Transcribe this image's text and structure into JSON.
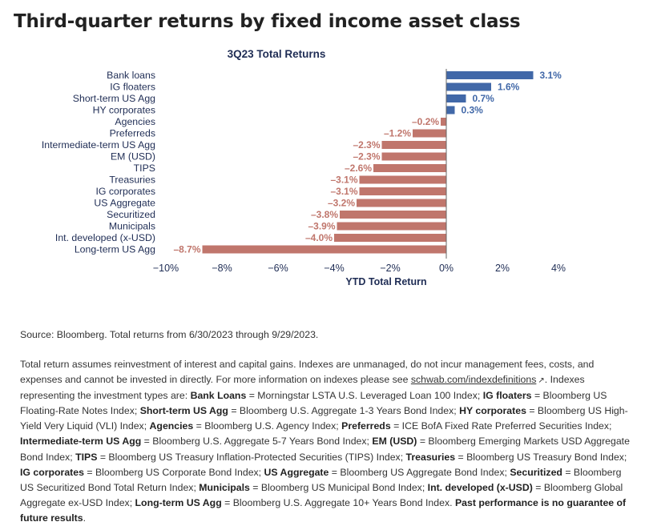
{
  "page_title": "Third-quarter returns by fixed income asset class",
  "chart_data": {
    "type": "bar",
    "orientation": "horizontal",
    "title": "3Q23 Total Returns",
    "xlabel": "YTD Total Return",
    "ylabel": "",
    "xlim": [
      -10,
      4
    ],
    "x_ticks": [
      -10,
      -8,
      -6,
      -4,
      -2,
      0,
      2,
      4
    ],
    "x_tick_labels": [
      "−10%",
      "−8%",
      "−6%",
      "−4%",
      "−2%",
      "0%",
      "2%",
      "4%"
    ],
    "categories": [
      "Bank loans",
      "IG floaters",
      "Short-term US Agg",
      "HY corporates",
      "Agencies",
      "Preferreds",
      "Intermediate-term US Agg",
      "EM (USD)",
      "TIPS",
      "Treasuries",
      "IG corporates",
      "US Aggregate",
      "Securitized",
      "Municipals",
      "Int. developed (x-USD)",
      "Long-term US Agg"
    ],
    "values": [
      3.1,
      1.6,
      0.7,
      0.3,
      -0.2,
      -1.2,
      -2.3,
      -2.3,
      -2.6,
      -3.1,
      -3.1,
      -3.2,
      -3.8,
      -3.9,
      -4.0,
      -8.7
    ],
    "data_labels": [
      "3.1%",
      "1.6%",
      "0.7%",
      "0.3%",
      "–0.2%",
      "–1.2%",
      "–2.3%",
      "–2.3%",
      "–2.6%",
      "–3.1%",
      "–3.1%",
      "–3.2%",
      "–3.8%",
      "–3.9%",
      "–4.0%",
      "–8.7%"
    ],
    "colors": {
      "positive": "#4168a8",
      "negative": "#c0766c",
      "axis_text": "#1f2d55",
      "zero_line": "#666666"
    },
    "grid": false
  },
  "footnotes": {
    "source": "Source: Bloomberg. Total returns from 6/30/2023 through 9/29/2023.",
    "t1": "Total return assumes reinvestment of interest and capital gains. Indexes are unmanaged, do not incur management fees, costs, and expenses and cannot be invested in directly. For more information on indexes please see ",
    "link": "schwab.com/indexdefinitions",
    "t2": ". Indexes representing the investment types are: ",
    "defs": [
      {
        "name": "Bank Loans",
        "desc": " = Morningstar LSTA U.S. Leveraged Loan 100 Index; "
      },
      {
        "name": "IG floaters",
        "desc": " = Bloomberg US Floating-Rate Notes Index; "
      },
      {
        "name": "Short-term US Agg",
        "desc": " = Bloomberg U.S. Aggregate 1-3 Years Bond Index; "
      },
      {
        "name": "HY corporates",
        "desc": " = Bloomberg US High-Yield Very Liquid (VLI) Index; "
      },
      {
        "name": "Agencies",
        "desc": " = Bloomberg U.S. Agency Index; "
      },
      {
        "name": "Preferreds",
        "desc": " = ICE BofA Fixed Rate Preferred Securities Index; "
      },
      {
        "name": "Intermediate-term US Agg",
        "desc": " = Bloomberg U.S. Aggregate 5-7 Years Bond Index; "
      },
      {
        "name": "EM (USD)",
        "desc": " = Bloomberg Emerging Markets USD Aggregate Bond Index; "
      },
      {
        "name": "TIPS",
        "desc": " = Bloomberg US Treasury Inflation-Protected Securities (TIPS) Index; "
      },
      {
        "name": "Treasuries",
        "desc": " = Bloomberg US Treasury Bond Index; "
      },
      {
        "name": "IG corporates",
        "desc": " = Bloomberg US Corporate Bond Index; "
      },
      {
        "name": "US Aggregate",
        "desc": " = Bloomberg US Aggregate Bond Index; "
      },
      {
        "name": "Securitized",
        "desc": " = Bloomberg US Securitized Bond Total Return Index; "
      },
      {
        "name": "Municipals",
        "desc": " = Bloomberg US Municipal Bond Index; "
      },
      {
        "name": "Int. developed (x-USD)",
        "desc": " = Bloomberg Global Aggregate ex-USD Index; "
      },
      {
        "name": "Long-term US Agg",
        "desc": " = Bloomberg U.S. Aggregate 10+ Years Bond Index. "
      }
    ],
    "disclaimer": "Past performance is no guarantee of future results",
    "end": "."
  }
}
